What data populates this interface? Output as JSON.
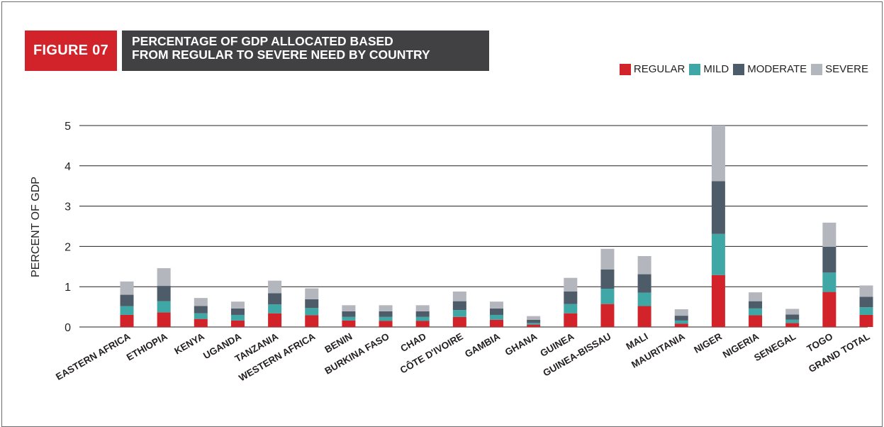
{
  "figure_label": "FIGURE 07",
  "title_lines": [
    "PERCENTAGE OF GDP ALLOCATED BASED",
    "FROM REGULAR TO SEVERE NEED BY COUNTRY"
  ],
  "colors": {
    "accent_red": "#d2232a",
    "title_bg": "#414042",
    "regular": "#d2232a",
    "mild": "#3fa7a5",
    "moderate": "#4e5b69",
    "severe": "#b4b6bd"
  },
  "chart_data": {
    "type": "bar",
    "stacked": true,
    "title": "PERCENTAGE OF GDP ALLOCATED BASED FROM REGULAR TO SEVERE NEED BY COUNTRY",
    "xlabel": "",
    "ylabel": "PERCENT OF GDP",
    "ylim": [
      0,
      5
    ],
    "yticks": [
      "0",
      "1",
      "2",
      "3",
      "4",
      "5"
    ],
    "grid": "horizontal",
    "legend_position": "top-right",
    "categories": [
      "EASTERN AFRICA",
      "ETHIOPIA",
      "KENYA",
      "UGANDA",
      "TANZANIA",
      "WESTERN AFRICA",
      "BENIN",
      "BURKINA FASO",
      "CHAD",
      "CÔTE D'IVOIRE",
      "GAMBIA",
      "GHANA",
      "GUINEA",
      "GUINEA-BISSAU",
      "MALI",
      "MAURITANIA",
      "NIGER",
      "NIGERIA",
      "SENEGAL",
      "TOGO",
      "GRAND TOTAL"
    ],
    "series": [
      {
        "name": "REGULAR",
        "values": [
          0.3,
          0.36,
          0.2,
          0.16,
          0.34,
          0.29,
          0.16,
          0.15,
          0.15,
          0.25,
          0.18,
          0.06,
          0.34,
          0.57,
          0.52,
          0.08,
          1.29,
          0.29,
          0.1,
          0.87,
          0.3
        ]
      },
      {
        "name": "MILD",
        "values": [
          0.22,
          0.28,
          0.14,
          0.14,
          0.22,
          0.18,
          0.09,
          0.1,
          0.1,
          0.17,
          0.12,
          0.04,
          0.23,
          0.38,
          0.33,
          0.08,
          1.02,
          0.17,
          0.08,
          0.48,
          0.19
        ]
      },
      {
        "name": "MODERATE",
        "values": [
          0.28,
          0.38,
          0.18,
          0.16,
          0.28,
          0.22,
          0.14,
          0.14,
          0.14,
          0.22,
          0.16,
          0.08,
          0.31,
          0.48,
          0.46,
          0.12,
          1.31,
          0.18,
          0.13,
          0.64,
          0.26
        ]
      },
      {
        "name": "SEVERE",
        "values": [
          0.33,
          0.44,
          0.2,
          0.17,
          0.31,
          0.27,
          0.15,
          0.15,
          0.15,
          0.24,
          0.17,
          0.09,
          0.34,
          0.51,
          0.45,
          0.16,
          1.38,
          0.22,
          0.14,
          0.6,
          0.28
        ]
      }
    ]
  }
}
